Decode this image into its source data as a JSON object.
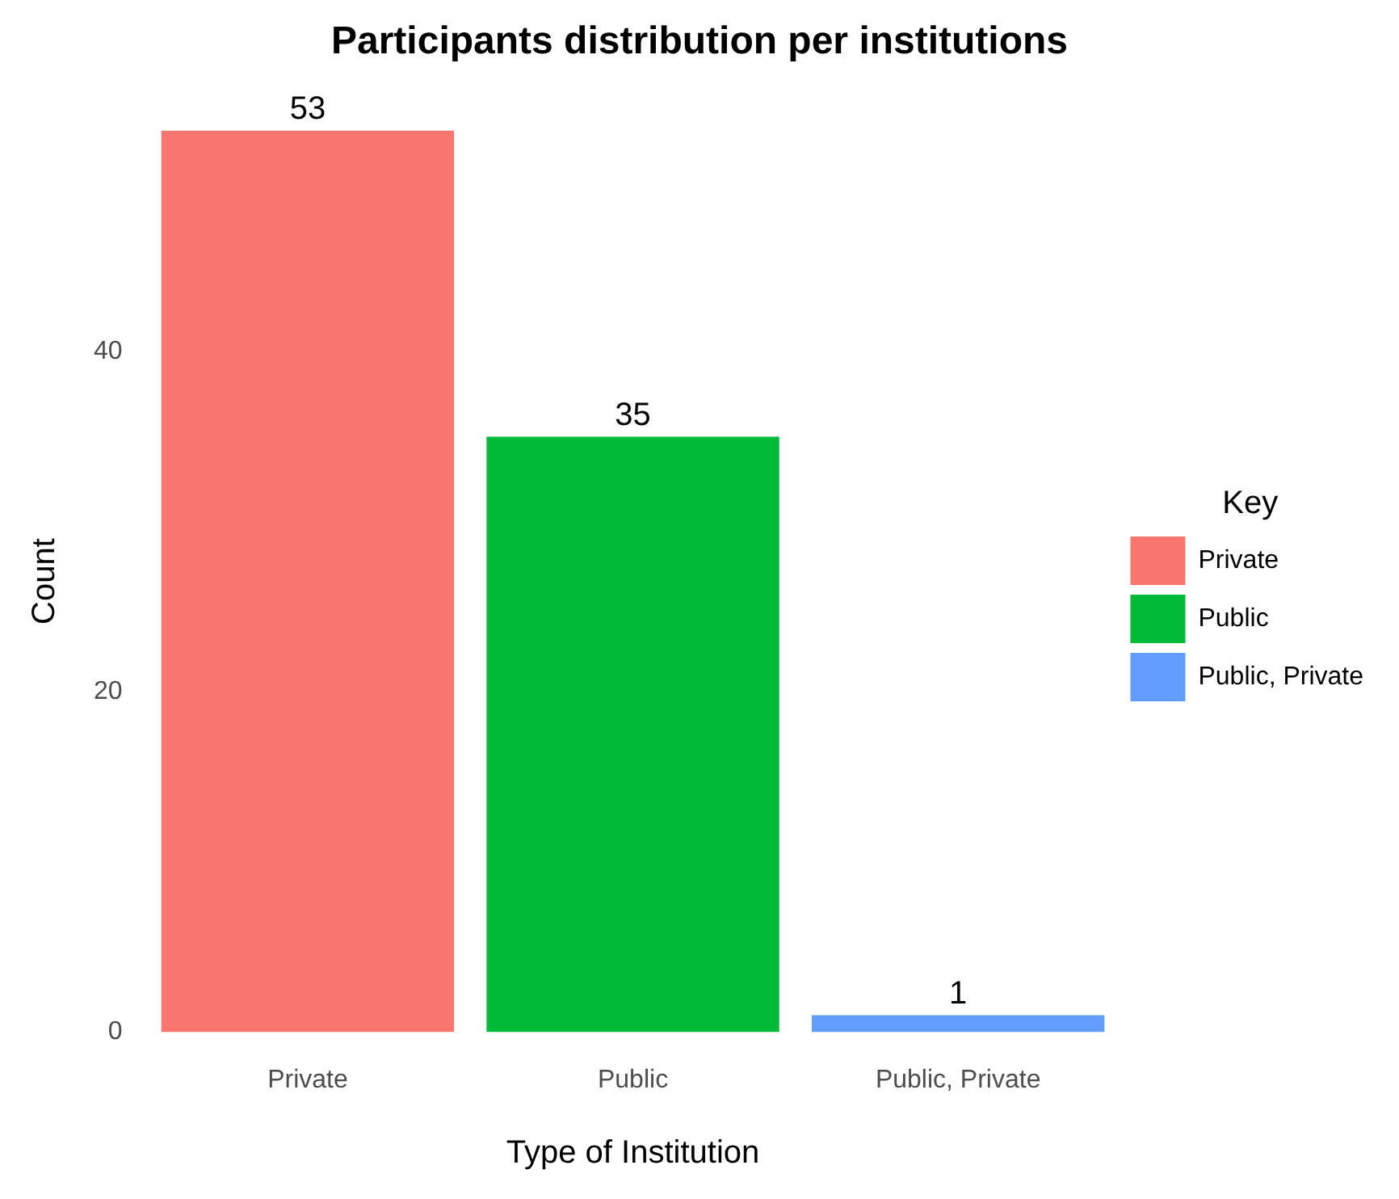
{
  "chart_data": {
    "type": "bar",
    "title": "Participants distribution per institutions",
    "xlabel": "Type of Institution",
    "ylabel": "Count",
    "legend_title": "Key",
    "categories": [
      "Private",
      "Public",
      "Public, Private"
    ],
    "series": [
      {
        "name": "Private",
        "color": "#f8766d",
        "values": [
          53,
          null,
          null
        ]
      },
      {
        "name": "Public",
        "color": "#00ba38",
        "values": [
          null,
          35,
          null
        ]
      },
      {
        "name": "Public, Private",
        "color": "#619cff",
        "values": [
          null,
          null,
          1
        ]
      }
    ],
    "ylim": [
      0,
      53
    ],
    "yticks": [
      0,
      20,
      40
    ],
    "grid": false,
    "legend": "right",
    "data_labels": true
  }
}
